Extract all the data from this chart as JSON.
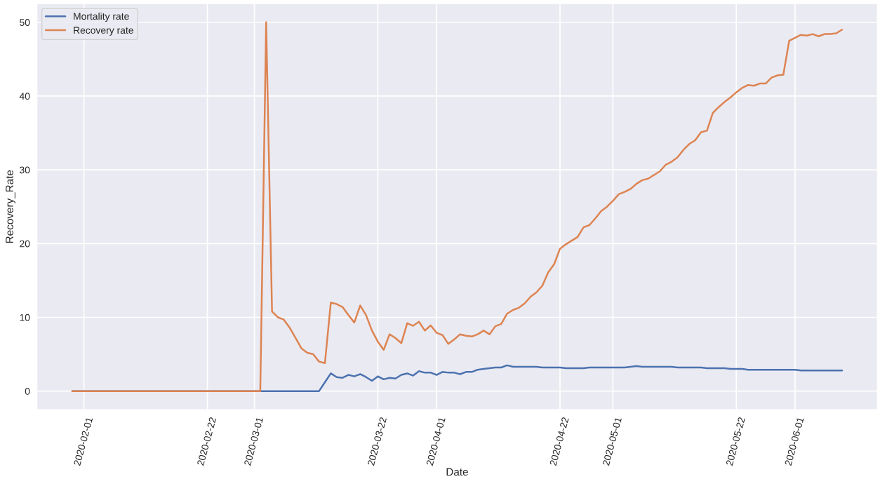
{
  "chart_data": {
    "type": "line",
    "xlabel": "Date",
    "ylabel": "Recovery_Rate",
    "x": [
      "2020-01-30",
      "2020-03-01",
      "2020-03-02",
      "2020-03-03",
      "2020-03-04",
      "2020-03-05",
      "2020-03-06",
      "2020-03-07",
      "2020-03-08",
      "2020-03-09",
      "2020-03-10",
      "2020-03-11",
      "2020-03-12",
      "2020-03-13",
      "2020-03-14",
      "2020-03-15",
      "2020-03-16",
      "2020-03-17",
      "2020-03-18",
      "2020-03-19",
      "2020-03-20",
      "2020-03-21",
      "2020-03-22",
      "2020-03-23",
      "2020-03-24",
      "2020-03-25",
      "2020-03-26",
      "2020-03-27",
      "2020-03-28",
      "2020-03-29",
      "2020-03-30",
      "2020-03-31",
      "2020-04-01",
      "2020-04-02",
      "2020-04-03",
      "2020-04-04",
      "2020-04-05",
      "2020-04-06",
      "2020-04-07",
      "2020-04-08",
      "2020-04-09",
      "2020-04-10",
      "2020-04-11",
      "2020-04-12",
      "2020-04-13",
      "2020-04-14",
      "2020-04-15",
      "2020-04-16",
      "2020-04-17",
      "2020-04-18",
      "2020-04-19",
      "2020-04-20",
      "2020-04-21",
      "2020-04-22",
      "2020-04-23",
      "2020-04-24",
      "2020-04-25",
      "2020-04-26",
      "2020-04-27",
      "2020-04-28",
      "2020-04-29",
      "2020-04-30",
      "2020-05-01",
      "2020-05-02",
      "2020-05-03",
      "2020-05-04",
      "2020-05-05",
      "2020-05-06",
      "2020-05-07",
      "2020-05-08",
      "2020-05-09",
      "2020-05-10",
      "2020-05-11",
      "2020-05-12",
      "2020-05-13",
      "2020-05-14",
      "2020-05-15",
      "2020-05-16",
      "2020-05-17",
      "2020-05-18",
      "2020-05-19",
      "2020-05-20",
      "2020-05-21",
      "2020-05-22",
      "2020-05-23",
      "2020-05-24",
      "2020-05-25",
      "2020-05-26",
      "2020-05-27",
      "2020-05-28",
      "2020-05-29",
      "2020-05-30",
      "2020-05-31",
      "2020-06-01",
      "2020-06-02",
      "2020-06-03",
      "2020-06-04",
      "2020-06-05",
      "2020-06-06",
      "2020-06-07",
      "2020-06-08",
      "2020-06-09"
    ],
    "series": [
      {
        "name": "Mortality rate",
        "color": "#4c72b0",
        "values": [
          0,
          0,
          0,
          0,
          0,
          0,
          0,
          0,
          0,
          0,
          0,
          0,
          0,
          1.2,
          2.4,
          1.9,
          1.8,
          2.2,
          2.0,
          2.3,
          1.9,
          1.4,
          2.0,
          1.6,
          1.8,
          1.7,
          2.2,
          2.4,
          2.1,
          2.7,
          2.5,
          2.5,
          2.2,
          2.6,
          2.5,
          2.5,
          2.3,
          2.6,
          2.6,
          2.9,
          3.0,
          3.1,
          3.2,
          3.2,
          3.5,
          3.3,
          3.3,
          3.3,
          3.3,
          3.3,
          3.2,
          3.2,
          3.2,
          3.2,
          3.1,
          3.1,
          3.1,
          3.1,
          3.2,
          3.2,
          3.2,
          3.2,
          3.2,
          3.2,
          3.2,
          3.3,
          3.4,
          3.3,
          3.3,
          3.3,
          3.3,
          3.3,
          3.3,
          3.2,
          3.2,
          3.2,
          3.2,
          3.2,
          3.1,
          3.1,
          3.1,
          3.1,
          3.0,
          3.0,
          3.0,
          2.9,
          2.9,
          2.9,
          2.9,
          2.9,
          2.9,
          2.9,
          2.9,
          2.9,
          2.8,
          2.8,
          2.8,
          2.8,
          2.8,
          2.8,
          2.8,
          2.8
        ]
      },
      {
        "name": "Recovery rate",
        "color": "#dd8452",
        "values": [
          0,
          0,
          0,
          50,
          10.8,
          10.0,
          9.7,
          8.6,
          7.2,
          5.8,
          5.2,
          5.0,
          4.0,
          3.8,
          12.0,
          11.8,
          11.4,
          10.3,
          9.3,
          11.6,
          10.3,
          8.2,
          6.7,
          5.6,
          7.7,
          7.2,
          6.5,
          9.2,
          8.85,
          9.4,
          8.2,
          8.9,
          7.9,
          7.6,
          6.4,
          7.0,
          7.7,
          7.5,
          7.4,
          7.7,
          8.2,
          7.7,
          8.8,
          9.1,
          10.5,
          11.0,
          11.3,
          11.9,
          12.8,
          13.4,
          14.3,
          16.1,
          17.2,
          19.3,
          19.9,
          20.4,
          20.9,
          22.2,
          22.5,
          23.4,
          24.4,
          25.0,
          25.8,
          26.7,
          27.0,
          27.4,
          28.1,
          28.6,
          28.8,
          29.3,
          29.8,
          30.7,
          31.1,
          31.7,
          32.7,
          33.5,
          34.0,
          35.1,
          35.3,
          37.7,
          38.5,
          39.2,
          39.8,
          40.5,
          41.1,
          41.5,
          41.4,
          41.7,
          41.7,
          42.5,
          42.8,
          42.9,
          47.5,
          47.9,
          48.3,
          48.2,
          48.4,
          48.1,
          48.4,
          48.4,
          48.5,
          49.0
        ]
      }
    ],
    "xlim": [
      "2020-01-24",
      "2020-06-15"
    ],
    "xticks": [
      "2020-02-01",
      "2020-02-22",
      "2020-03-01",
      "2020-03-22",
      "2020-04-01",
      "2020-04-22",
      "2020-05-01",
      "2020-05-22",
      "2020-06-01"
    ],
    "ylim": [
      -2.5,
      52.5
    ],
    "yticks": [
      0,
      10,
      20,
      30,
      40,
      50
    ],
    "grid": true,
    "legend": "top left"
  }
}
